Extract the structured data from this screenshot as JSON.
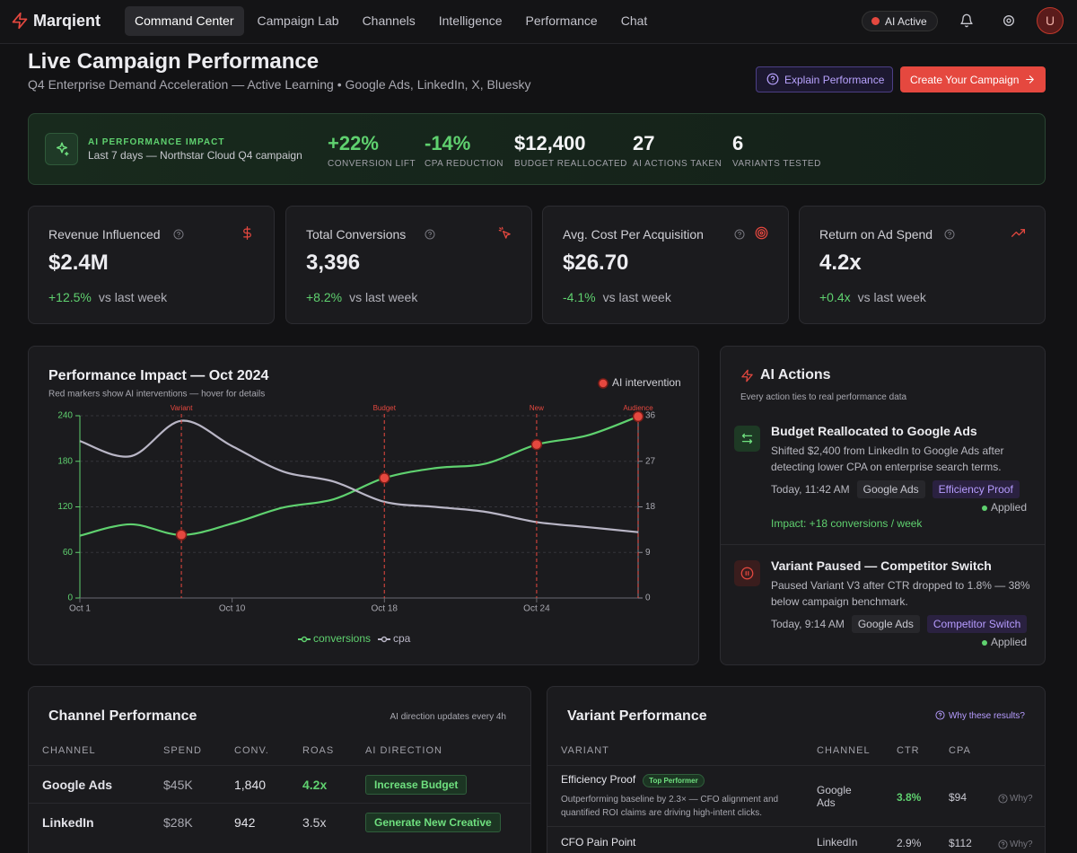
{
  "nav": {
    "brand": "Marqient",
    "tabs": [
      "Command Center",
      "Campaign Lab",
      "Channels",
      "Intelligence",
      "Performance",
      "Chat"
    ],
    "status": "AI Active",
    "avatar": "U"
  },
  "header": {
    "title": "Live Campaign Performance",
    "subtitle": "Q4 Enterprise Demand Acceleration — Active Learning • Google Ads, LinkedIn, X, Bluesky",
    "explain_button": "Explain Performance",
    "create_button": "Create Your Campaign"
  },
  "impact": {
    "label": "AI PERFORMANCE IMPACT",
    "description": "Last 7 days — Northstar Cloud Q4 campaign",
    "stats": [
      {
        "value": "+22%",
        "label": "CONVERSION LIFT"
      },
      {
        "value": "-14%",
        "label": "CPA REDUCTION"
      },
      {
        "value": "$12,400",
        "label": "BUDGET REALLOCATED"
      },
      {
        "value": "27",
        "label": "AI ACTIONS TAKEN"
      },
      {
        "value": "6",
        "label": "VARIANTS TESTED"
      }
    ]
  },
  "kpis": [
    {
      "title": "Revenue Influenced",
      "value": "$2.4M",
      "change": "+12.5%",
      "note": "vs last week"
    },
    {
      "title": "Total Conversions",
      "value": "3,396",
      "change": "+8.2%",
      "note": "vs last week"
    },
    {
      "title": "Avg. Cost Per Acquisition",
      "value": "$26.70",
      "change": "-4.1%",
      "note": "vs last week"
    },
    {
      "title": "Return on Ad Spend",
      "value": "4.2x",
      "change": "+0.4x",
      "note": "vs last week"
    }
  ],
  "chart_data": {
    "type": "line",
    "title": "Performance Impact — Oct 2024",
    "subtitle": "Red markers show AI interventions — hover for details",
    "marker_legend": "AI intervention",
    "categories": [
      "Oct 1",
      null,
      null,
      "Oct 10",
      null,
      null,
      "Oct 18",
      null,
      null,
      "Oct 24",
      null,
      null
    ],
    "series": [
      {
        "name": "conversions",
        "color": "#5fd16f",
        "values": [
          82,
          97,
          83,
          98,
          119,
          130,
          158,
          171,
          177,
          202,
          214,
          239
        ]
      },
      {
        "name": "cpa",
        "color": "#b9b6c6",
        "axis": "y2",
        "values": [
          31,
          28,
          35,
          30,
          25,
          23,
          19,
          18,
          17,
          15,
          14,
          13
        ]
      }
    ],
    "ylim": [
      0,
      240
    ],
    "yticks": [
      0,
      60,
      120,
      180,
      240
    ],
    "y2lim": [
      0,
      36
    ],
    "y2ticks": [
      0,
      9,
      18,
      27,
      36
    ],
    "grid": true,
    "interventions": [
      {
        "label": "Variant",
        "index": 2,
        "color": "#e5483f"
      },
      {
        "label": "Budget",
        "index": 6,
        "color": "#e5483f"
      },
      {
        "label": "New",
        "index": 9,
        "color": "#e5483f"
      },
      {
        "label": "Audience",
        "index": 11,
        "color": "#e5483f"
      }
    ]
  },
  "ai_actions": {
    "title": "AI Actions",
    "subtitle": "Every action ties to real performance data",
    "items": [
      {
        "title": "Budget Reallocated to Google Ads",
        "description": "Shifted $2,400 from LinkedIn to Google Ads after detecting lower CPA on enterprise search terms.",
        "time": "Today, 11:42 AM",
        "tags": [
          "Google Ads",
          "Efficiency Proof"
        ],
        "status": "Applied",
        "impact": "Impact: +18 conversions / week"
      },
      {
        "title": "Variant Paused — Competitor Switch",
        "description": "Paused Variant V3 after CTR dropped to 1.8% — 38% below campaign benchmark.",
        "time": "Today, 9:14 AM",
        "tags": [
          "Google Ads",
          "Competitor Switch"
        ],
        "status": "Applied"
      }
    ]
  },
  "channel_performance": {
    "title": "Channel Performance",
    "note": "AI direction updates every 4h",
    "columns": [
      "CHANNEL",
      "SPEND",
      "CONV.",
      "ROAS",
      "AI DIRECTION"
    ],
    "rows": [
      [
        "Google Ads",
        "$45K",
        "1,840",
        "4.2x",
        "Increase Budget"
      ],
      [
        "LinkedIn",
        "$28K",
        "942",
        "3.5x",
        "Generate New Creative"
      ]
    ]
  },
  "variant_performance": {
    "title": "Variant Performance",
    "link": "Why these results?",
    "columns": [
      "VARIANT",
      "CHANNEL",
      "CTR",
      "CPA"
    ],
    "rows": [
      {
        "name": "Efficiency Proof",
        "badge": "Top Performer",
        "description": "Outperforming baseline by 2.3× — CFO alignment and quantified ROI claims are driving high-intent clicks.",
        "channel": "Google Ads",
        "ctr": "3.8%",
        "cpa": "$94",
        "why": "Why?"
      },
      {
        "name": "CFO Pain Point",
        "channel": "LinkedIn",
        "ctr": "2.9%",
        "cpa": "$112",
        "why": "Why?"
      }
    ]
  }
}
